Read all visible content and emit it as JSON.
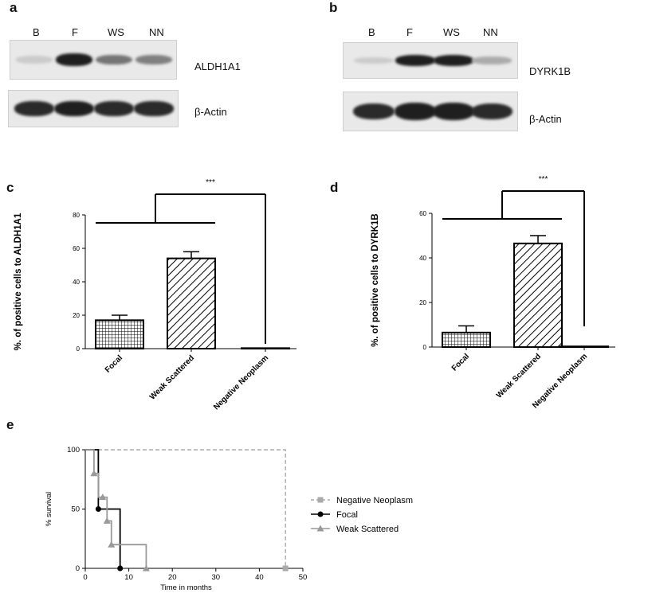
{
  "panels": {
    "a": "a",
    "b": "b",
    "c": "c",
    "d": "d",
    "e": "e"
  },
  "blot_a": {
    "lanes": [
      "B",
      "F",
      "WS",
      "NN"
    ],
    "row1_label": "ALDH1A1",
    "row2_label": "β-Actin",
    "row1_intensity": [
      0.15,
      0.95,
      0.55,
      0.5
    ],
    "row2_intensity": [
      0.9,
      0.95,
      0.9,
      0.9
    ]
  },
  "blot_b": {
    "lanes": [
      "B",
      "F",
      "WS",
      "NN"
    ],
    "row1_label": "DYRK1B",
    "row2_label": "β-Actin",
    "row1_intensity": [
      0.15,
      0.95,
      0.95,
      0.3
    ],
    "row2_intensity": [
      0.9,
      0.95,
      0.95,
      0.9
    ]
  },
  "chart_data": [
    {
      "type": "bar",
      "panel": "c",
      "categories": [
        "Focal",
        "Weak Scattered",
        "Negative Neoplasm"
      ],
      "values": [
        17,
        54,
        0.3
      ],
      "errors": [
        3,
        4,
        0
      ],
      "patterns": [
        "grid",
        "diagonal",
        "none"
      ],
      "ylabel": "%. of positive cells to ALDH1A1",
      "ylim": [
        0,
        80
      ],
      "yticks": [
        "0",
        "20",
        "40",
        "60",
        "80"
      ],
      "yticks_values": [
        0,
        20,
        40,
        60,
        80
      ],
      "significance": "***"
    },
    {
      "type": "bar",
      "panel": "d",
      "categories": [
        "Focal",
        "Weak Scattered",
        "Negative Neoplasm"
      ],
      "values": [
        6.5,
        46.5,
        0.3
      ],
      "errors": [
        3,
        3.5,
        0
      ],
      "patterns": [
        "grid",
        "diagonal",
        "none"
      ],
      "ylabel": "%. of positive cells to DYRK1B",
      "ylim": [
        0,
        60
      ],
      "yticks": [
        "0",
        "20",
        "40",
        "60"
      ],
      "yticks_values": [
        0,
        20,
        40,
        60
      ],
      "significance": "***"
    },
    {
      "type": "line",
      "panel": "e",
      "xlabel": "Time in months",
      "ylabel": "% survival",
      "xlim": [
        0,
        50
      ],
      "ylim": [
        0,
        100
      ],
      "xticks": [
        "0",
        "10",
        "20",
        "30",
        "40",
        "50"
      ],
      "xticks_values": [
        0,
        10,
        20,
        30,
        40,
        50
      ],
      "yticks": [
        "0",
        "50",
        "100"
      ],
      "yticks_values": [
        0,
        50,
        100
      ],
      "legend_position": "right",
      "series": [
        {
          "name": "Negative Neoplasm",
          "color": "#aaaaaa",
          "dashed": true,
          "marker": "square",
          "steps": [
            [
              0,
              100
            ],
            [
              46,
              100
            ],
            [
              46,
              0
            ]
          ],
          "points": [
            [
              46,
              0
            ]
          ]
        },
        {
          "name": "Focal",
          "color": "#000000",
          "dashed": false,
          "marker": "circle",
          "steps": [
            [
              0,
              100
            ],
            [
              3,
              100
            ],
            [
              3,
              50
            ],
            [
              8,
              50
            ],
            [
              8,
              0
            ]
          ],
          "points": [
            [
              3,
              50
            ],
            [
              8,
              0
            ]
          ]
        },
        {
          "name": "Weak Scattered",
          "color": "#999999",
          "dashed": false,
          "marker": "triangle",
          "steps": [
            [
              0,
              100
            ],
            [
              2,
              100
            ],
            [
              2,
              80
            ],
            [
              3,
              80
            ],
            [
              3,
              60
            ],
            [
              5,
              60
            ],
            [
              5,
              40
            ],
            [
              6,
              40
            ],
            [
              6,
              20
            ],
            [
              14,
              20
            ],
            [
              14,
              0
            ]
          ],
          "points": [
            [
              2,
              80
            ],
            [
              4,
              60
            ],
            [
              5,
              40
            ],
            [
              6,
              20
            ],
            [
              14,
              0
            ]
          ]
        }
      ]
    }
  ]
}
